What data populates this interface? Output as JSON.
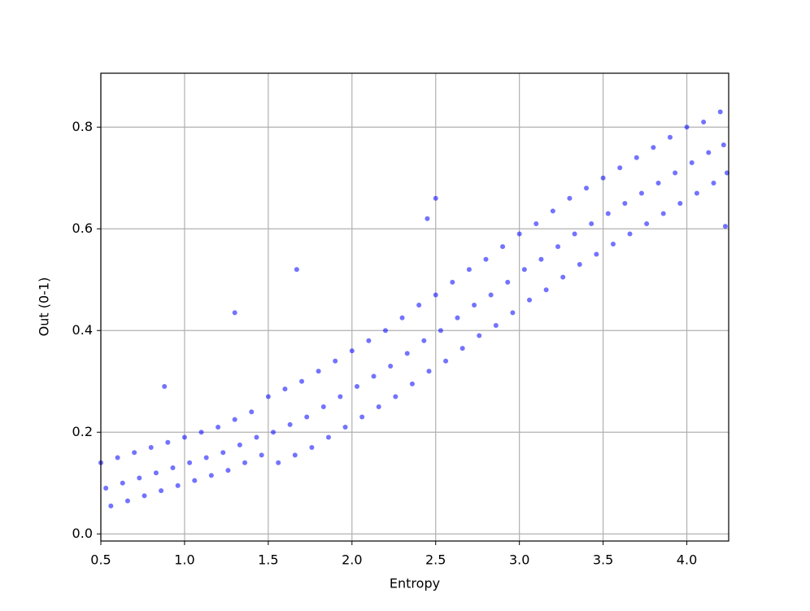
{
  "chart_data": {
    "type": "scatter",
    "x_label": "Entropy",
    "y_label": "Out (0-1)",
    "xlim": [
      0.5,
      4.25
    ],
    "ylim": [
      -0.014,
      0.906
    ],
    "xticks": [
      0.5,
      {
        "value": 1.0,
        "label": "1.0"
      },
      1.5,
      {
        "value": 2.0,
        "label": "2.0"
      },
      2.5,
      {
        "value": 3.0,
        "label": "3.0"
      },
      3.5,
      {
        "value": 4.0,
        "label": "4.0"
      }
    ],
    "yticks": [
      {
        "value": 0.0,
        "label": "0.0"
      },
      0.2,
      0.4,
      0.6,
      0.8
    ],
    "grid": true,
    "color": "#0000ff",
    "x": [
      0.5,
      0.53,
      0.56,
      0.6,
      0.63,
      0.66,
      0.7,
      0.73,
      0.76,
      0.8,
      0.83,
      0.86,
      0.9,
      0.93,
      0.96,
      1.0,
      1.03,
      1.06,
      1.1,
      1.13,
      1.16,
      1.2,
      1.23,
      1.26,
      1.3,
      1.33,
      1.36,
      1.4,
      1.43,
      1.46,
      1.5,
      1.53,
      1.56,
      1.6,
      1.63,
      1.66,
      1.7,
      1.73,
      1.76,
      1.8,
      1.83,
      1.86,
      1.9,
      1.93,
      1.96,
      2.0,
      2.03,
      2.06,
      2.1,
      2.13,
      2.16,
      2.2,
      2.23,
      2.26,
      2.3,
      2.33,
      2.36,
      2.4,
      2.43,
      2.46,
      2.5,
      2.53,
      2.56,
      2.6,
      2.63,
      2.66,
      2.7,
      2.73,
      2.76,
      2.8,
      2.83,
      2.86,
      2.9,
      2.93,
      2.96,
      3.0,
      3.03,
      3.06,
      3.1,
      3.13,
      3.16,
      3.2,
      3.23,
      3.26,
      3.3,
      3.33,
      3.36,
      3.4,
      3.43,
      3.46,
      3.5,
      3.53,
      3.56,
      3.6,
      3.63,
      3.66,
      3.7,
      3.73,
      3.76,
      3.8,
      3.83,
      3.86,
      3.9,
      3.93,
      3.96,
      4.0,
      4.03,
      4.06,
      4.1,
      4.13,
      4.16,
      4.2,
      4.22,
      4.24,
      1.3,
      1.67,
      2.45,
      2.5,
      4.23,
      0.88
    ],
    "values": [
      0.14,
      0.09,
      0.055,
      0.15,
      0.1,
      0.065,
      0.16,
      0.11,
      0.075,
      0.17,
      0.12,
      0.085,
      0.18,
      0.13,
      0.095,
      0.19,
      0.14,
      0.105,
      0.2,
      0.15,
      0.115,
      0.21,
      0.16,
      0.125,
      0.225,
      0.175,
      0.14,
      0.24,
      0.19,
      0.155,
      0.27,
      0.2,
      0.14,
      0.285,
      0.215,
      0.155,
      0.3,
      0.23,
      0.17,
      0.32,
      0.25,
      0.19,
      0.34,
      0.27,
      0.21,
      0.36,
      0.29,
      0.23,
      0.38,
      0.31,
      0.25,
      0.4,
      0.33,
      0.27,
      0.425,
      0.355,
      0.295,
      0.45,
      0.38,
      0.32,
      0.47,
      0.4,
      0.34,
      0.495,
      0.425,
      0.365,
      0.52,
      0.45,
      0.39,
      0.54,
      0.47,
      0.41,
      0.565,
      0.495,
      0.435,
      0.59,
      0.52,
      0.46,
      0.61,
      0.54,
      0.48,
      0.635,
      0.565,
      0.505,
      0.66,
      0.59,
      0.53,
      0.68,
      0.61,
      0.55,
      0.7,
      0.63,
      0.57,
      0.72,
      0.65,
      0.59,
      0.74,
      0.67,
      0.61,
      0.76,
      0.69,
      0.63,
      0.78,
      0.71,
      0.65,
      0.8,
      0.73,
      0.67,
      0.81,
      0.75,
      0.69,
      0.83,
      0.765,
      0.71,
      0.435,
      0.52,
      0.62,
      0.66,
      0.605,
      0.29
    ]
  }
}
